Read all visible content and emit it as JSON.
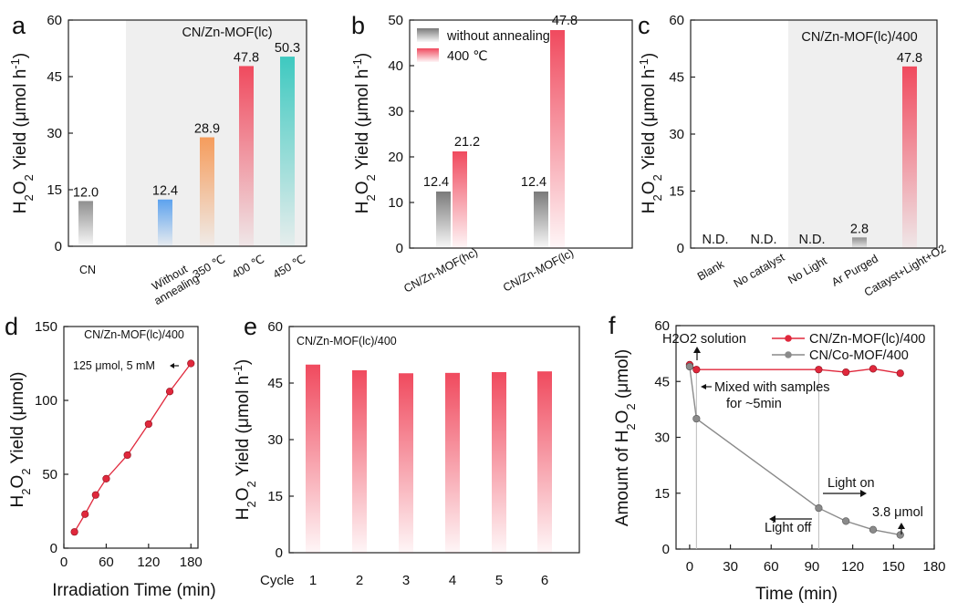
{
  "chart_data": [
    {
      "panel": "a",
      "type": "bar",
      "title": "CN/Zn-MOF(lc)",
      "ylabel": "H2O2 Yield (μmol h-1)",
      "ylim": [
        0,
        60
      ],
      "yticks": [
        0,
        15,
        30,
        45,
        60
      ],
      "categories": [
        "CN",
        "Without annealing",
        "350 ℃",
        "400 ℃",
        "450 ℃"
      ],
      "values": [
        12.0,
        12.4,
        28.9,
        47.8,
        50.3
      ],
      "value_labels": [
        "12.0",
        "12.4",
        "28.9",
        "47.8",
        "50.3"
      ],
      "bar_colors": [
        "#8f8f8f",
        "#5da2ee",
        "#f59c5c",
        "#f04a5e",
        "#3ec9c0"
      ],
      "shaded_region": "categories 2-5"
    },
    {
      "panel": "b",
      "type": "bar",
      "ylabel": "H2O2 Yield (μmol h-1)",
      "ylim": [
        0,
        50
      ],
      "yticks": [
        0,
        10,
        20,
        30,
        40,
        50
      ],
      "categories": [
        "CN/Zn-MOF(hc)",
        "CN/Zn-MOF(lc)"
      ],
      "series": [
        {
          "name": "without annealing",
          "values": [
            12.4,
            12.4
          ],
          "labels": [
            "12.4",
            "12.4"
          ],
          "color": "#7a7a7a"
        },
        {
          "name": "400 ℃",
          "values": [
            21.2,
            47.8
          ],
          "labels": [
            "21.2",
            "47.8"
          ],
          "color": "#f04a5e"
        }
      ],
      "legend": "top-left"
    },
    {
      "panel": "c",
      "type": "bar",
      "title": "CN/Zn-MOF(lc)/400",
      "ylabel": "H2O2 Yield (μmol h-1)",
      "ylim": [
        0,
        60
      ],
      "yticks": [
        0,
        15,
        30,
        45,
        60
      ],
      "categories": [
        "Blank",
        "No catalyst",
        "No Light",
        "Ar Purged",
        "Catayst+Light+O2"
      ],
      "values": [
        0,
        0,
        0,
        2.8,
        47.8
      ],
      "value_labels": [
        "N.D.",
        "N.D.",
        "N.D.",
        "2.8",
        "47.8"
      ],
      "bar_colors": [
        "#8f8f8f",
        "#8f8f8f",
        "#8f8f8f",
        "#8f8f8f",
        "#f04a5e"
      ],
      "shaded_region": "categories 3-5"
    },
    {
      "panel": "d",
      "type": "line",
      "title": "CN/Zn-MOF(lc)/400",
      "xlabel": "Irradiation Time (min)",
      "ylabel": "H2O2 Yield (μmol)",
      "xlim": [
        0,
        190
      ],
      "xticks": [
        0,
        60,
        120,
        180
      ],
      "ylim": [
        0,
        150
      ],
      "yticks": [
        0,
        50,
        100,
        150
      ],
      "x": [
        15,
        30,
        45,
        60,
        90,
        120,
        150,
        180
      ],
      "y": [
        11,
        23,
        36,
        47,
        63,
        84,
        106,
        125
      ],
      "annotation": "125 μmol, 5 mM",
      "color": "#e0283c"
    },
    {
      "panel": "e",
      "type": "bar",
      "title": "CN/Zn-MOF(lc)/400",
      "xlabel": "Cycle",
      "ylabel": "H2O2 Yield (μmol h-1)",
      "ylim": [
        0,
        60
      ],
      "yticks": [
        0,
        15,
        30,
        45,
        60
      ],
      "categories": [
        "1",
        "2",
        "3",
        "4",
        "5",
        "6"
      ],
      "values": [
        49.9,
        48.4,
        47.6,
        47.7,
        47.9,
        48.1
      ],
      "color": "#f04a5e"
    },
    {
      "panel": "f",
      "type": "line",
      "xlabel": "Time (min)",
      "ylabel": "Amount of H2O2 (μmol)",
      "xlim": [
        -10,
        180
      ],
      "xticks": [
        0,
        30,
        60,
        90,
        120,
        150,
        180
      ],
      "ylim": [
        0,
        60
      ],
      "yticks": [
        0,
        15,
        30,
        45,
        60
      ],
      "legend": "top-right",
      "series": [
        {
          "name": "CN/Zn-MOF(lc)/400",
          "x": [
            0,
            5,
            95,
            115,
            135,
            155
          ],
          "y": [
            49.5,
            48.2,
            48.2,
            47.5,
            48.4,
            47.2
          ],
          "color": "#e0283c"
        },
        {
          "name": "CN/Co-MOF/400",
          "x": [
            0,
            5,
            95,
            115,
            135,
            155
          ],
          "y": [
            49.0,
            35.0,
            11.0,
            7.5,
            5.2,
            3.8
          ],
          "color": "#8a8a8a"
        }
      ],
      "annotations": [
        "H2O2 solution",
        "Mixed with samples",
        "for ~5min",
        "Light off",
        "Light on",
        "3.8 μmol"
      ]
    }
  ]
}
